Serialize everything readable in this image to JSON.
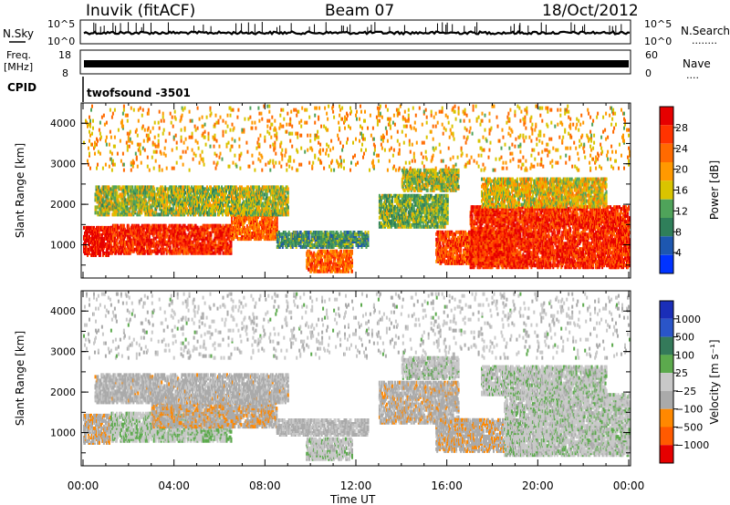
{
  "header": {
    "station": "Inuvik (fitACF)",
    "beam": "Beam 07",
    "date": "18/Oct/2012"
  },
  "noise_panel": {
    "left_label": "N.Sky",
    "right_label": "N.Search",
    "ticks_left": [
      "10^5",
      "10^0"
    ],
    "ticks_right": [
      "10^5",
      "10^0"
    ],
    "legend_dots_right": "........"
  },
  "freq_panel": {
    "left_label_top": "Freq.",
    "left_label_unit": "[MHz]",
    "right_label": "Nave",
    "ticks_left": [
      "18",
      "8"
    ],
    "ticks_right": [
      "60",
      "0"
    ],
    "legend_dots_right": "...."
  },
  "cpid": {
    "label": "CPID",
    "value": "twofsound -3501"
  },
  "colors": {
    "power_scale": [
      "#0033ff",
      "#1d57b0",
      "#2f7f5a",
      "#4fa35a",
      "#d9c400",
      "#ff9900",
      "#ff6a00",
      "#ff3300",
      "#e60000"
    ],
    "velocity_scale": [
      "#1a2eb8",
      "#2a55c8",
      "#347a5a",
      "#5caa4d",
      "#c8c8c8",
      "#aaaaaa",
      "#ff8800",
      "#ff5a00",
      "#e60000"
    ]
  },
  "chart_data": [
    {
      "type": "heatmap",
      "title": "",
      "xlabel": "Time UT",
      "ylabel": "Slant Range [km]",
      "x_ticks": [
        "00:00",
        "04:00",
        "08:00",
        "12:00",
        "16:00",
        "20:00",
        "00:00"
      ],
      "y_ticks": [
        "1000",
        "2000",
        "3000",
        "4000"
      ],
      "xlim": [
        0,
        24
      ],
      "ylim": [
        180,
        4500
      ],
      "colorbar_label": "Power [dB]",
      "colorbar_ticks": [
        "4",
        "8",
        "12",
        "16",
        "20",
        "24",
        "28"
      ],
      "clim": [
        0,
        30
      ],
      "regions": [
        {
          "t0": 0.0,
          "t1": 1.2,
          "r0": 700,
          "r1": 1400,
          "v": 28
        },
        {
          "t0": 1.2,
          "t1": 6.5,
          "r0": 750,
          "r1": 1450,
          "v": 26
        },
        {
          "t0": 6.5,
          "t1": 8.5,
          "r0": 1100,
          "r1": 1800,
          "v": 22
        },
        {
          "t0": 0.5,
          "t1": 9.0,
          "r0": 1700,
          "r1": 2400,
          "v": 14
        },
        {
          "t0": 8.5,
          "t1": 12.5,
          "r0": 900,
          "r1": 1300,
          "v": 10
        },
        {
          "t0": 9.8,
          "t1": 11.8,
          "r0": 300,
          "r1": 800,
          "v": 22
        },
        {
          "t0": 13.0,
          "t1": 16.0,
          "r0": 1400,
          "r1": 2200,
          "v": 12
        },
        {
          "t0": 15.5,
          "t1": 19.0,
          "r0": 500,
          "r1": 1300,
          "v": 24
        },
        {
          "t0": 17.0,
          "t1": 24.0,
          "r0": 400,
          "r1": 1900,
          "v": 26
        },
        {
          "t0": 17.5,
          "t1": 23.0,
          "r0": 1900,
          "r1": 2600,
          "v": 16
        },
        {
          "t0": 14.0,
          "t1": 16.5,
          "r0": 2300,
          "r1": 2800,
          "v": 14
        },
        {
          "t0": 0.0,
          "t1": 24.0,
          "r0": 2800,
          "r1": 4400,
          "v": 18
        }
      ]
    },
    {
      "type": "heatmap",
      "title": "",
      "xlabel": "Time UT",
      "ylabel": "Slant Range [km]",
      "x_ticks": [
        "00:00",
        "04:00",
        "08:00",
        "12:00",
        "16:00",
        "20:00",
        "00:00"
      ],
      "y_ticks": [
        "1000",
        "2000",
        "3000",
        "4000"
      ],
      "xlim": [
        0,
        24
      ],
      "ylim": [
        180,
        4500
      ],
      "colorbar_label": "Velocity [m s⁻¹]",
      "colorbar_ticks": [
        "1000",
        "500",
        "100",
        "25",
        "−25",
        "−100",
        "−500",
        "−1000"
      ],
      "clim": [
        -1200,
        1200
      ],
      "regions": [
        {
          "t0": 0.0,
          "t1": 1.2,
          "r0": 700,
          "r1": 1400,
          "v": -300
        },
        {
          "t0": 1.2,
          "t1": 6.5,
          "r0": 750,
          "r1": 1450,
          "v": 80
        },
        {
          "t0": 3.0,
          "t1": 8.5,
          "r0": 1100,
          "r1": 1900,
          "v": -300
        },
        {
          "t0": 0.5,
          "t1": 9.0,
          "r0": 1700,
          "r1": 2400,
          "v": -200
        },
        {
          "t0": 8.5,
          "t1": 12.5,
          "r0": 900,
          "r1": 1300,
          "v": -150
        },
        {
          "t0": 9.8,
          "t1": 11.8,
          "r0": 300,
          "r1": 800,
          "v": 0
        },
        {
          "t0": 13.0,
          "t1": 16.5,
          "r0": 1200,
          "r1": 2200,
          "v": -250
        },
        {
          "t0": 15.5,
          "t1": 19.0,
          "r0": 500,
          "r1": 1300,
          "v": -300
        },
        {
          "t0": 18.5,
          "t1": 24.0,
          "r0": 400,
          "r1": 1900,
          "v": 0
        },
        {
          "t0": 17.5,
          "t1": 23.0,
          "r0": 1900,
          "r1": 2600,
          "v": 0
        },
        {
          "t0": 14.0,
          "t1": 16.5,
          "r0": 2300,
          "r1": 2800,
          "v": -20
        },
        {
          "t0": 0.0,
          "t1": 24.0,
          "r0": 2800,
          "r1": 4400,
          "v": -60
        }
      ]
    }
  ]
}
